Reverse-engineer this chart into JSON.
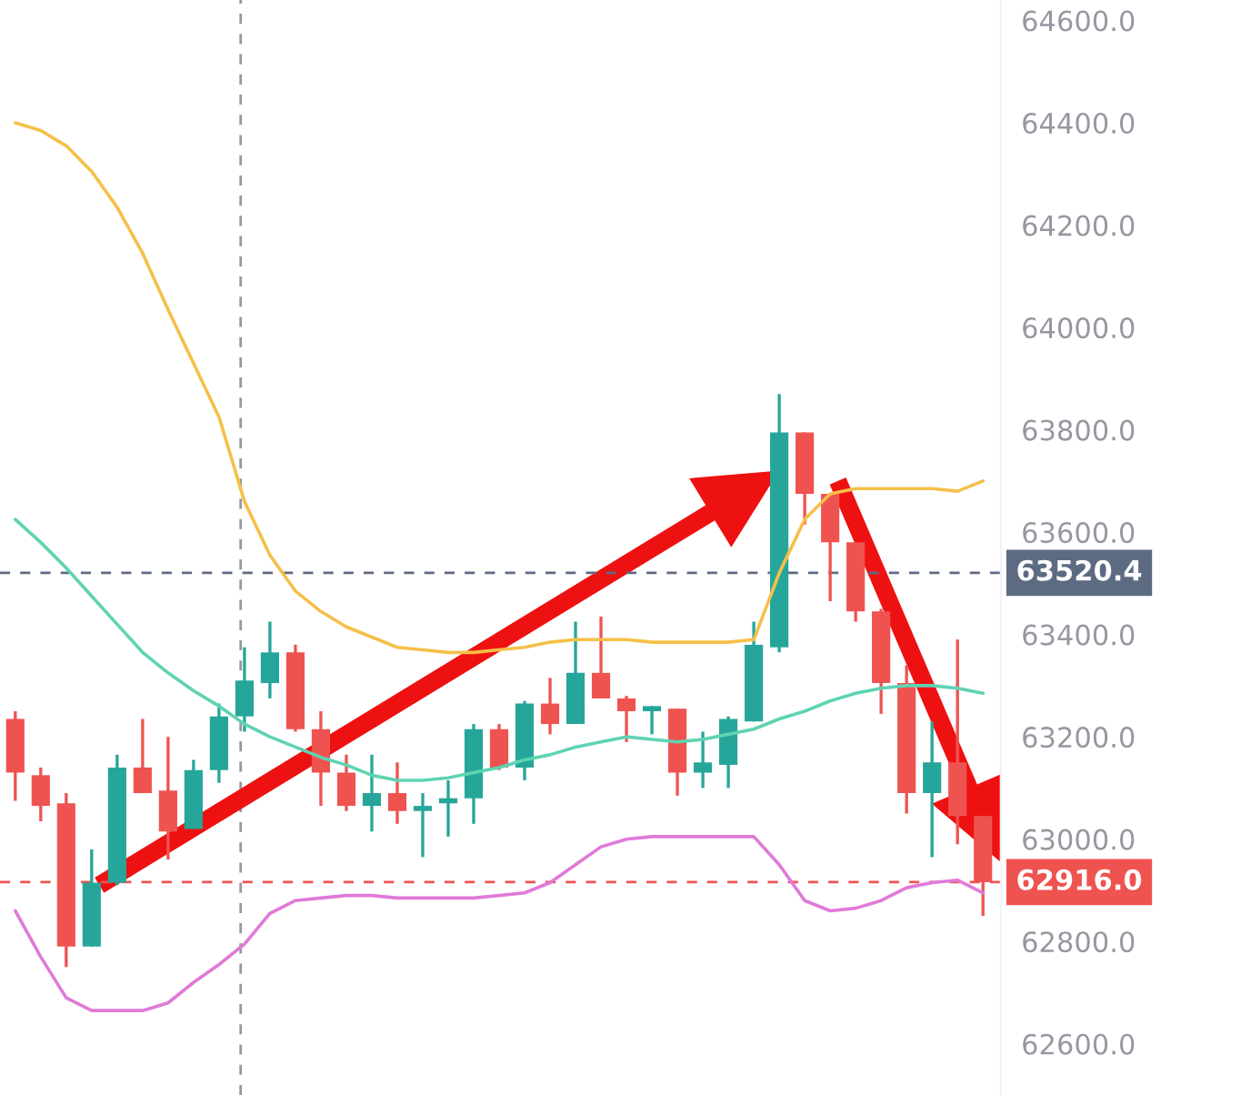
{
  "chart_data": {
    "type": "candlestick",
    "categories": [
      null,
      null,
      null,
      null,
      null,
      null,
      null,
      null,
      null,
      null,
      null,
      null,
      null,
      null,
      null,
      null,
      null,
      null,
      null,
      null,
      null,
      null,
      null,
      null,
      null,
      null,
      null,
      null,
      null,
      null,
      null,
      null,
      null,
      null,
      null,
      null,
      null,
      null,
      null
    ],
    "ohlc": [
      [
        63235,
        63250,
        63075,
        63130
      ],
      [
        63125,
        63140,
        63035,
        63065
      ],
      [
        63070,
        63090,
        62750,
        62790
      ],
      [
        62790,
        62980,
        62790,
        62915
      ],
      [
        62915,
        63165,
        62910,
        63140
      ],
      [
        63140,
        63235,
        63090,
        63090
      ],
      [
        63095,
        63200,
        62960,
        63015
      ],
      [
        63020,
        63155,
        63020,
        63135
      ],
      [
        63135,
        63265,
        63110,
        63240
      ],
      [
        63240,
        63375,
        63210,
        63310
      ],
      [
        63305,
        63425,
        63275,
        63365
      ],
      [
        63365,
        63380,
        63210,
        63215
      ],
      [
        63215,
        63250,
        63065,
        63130
      ],
      [
        63130,
        63165,
        63055,
        63065
      ],
      [
        63065,
        63165,
        63015,
        63090
      ],
      [
        63090,
        63150,
        63030,
        63055
      ],
      [
        63055,
        63090,
        62965,
        63065
      ],
      [
        63070,
        63115,
        63005,
        63080
      ],
      [
        63080,
        63225,
        63030,
        63215
      ],
      [
        63215,
        63225,
        63135,
        63140
      ],
      [
        63140,
        63270,
        63115,
        63265
      ],
      [
        63265,
        63315,
        63205,
        63225
      ],
      [
        63225,
        63425,
        63225,
        63325
      ],
      [
        63325,
        63435,
        63275,
        63275
      ],
      [
        63275,
        63280,
        63190,
        63250
      ],
      [
        63250,
        63260,
        63205,
        63260
      ],
      [
        63255,
        63255,
        63085,
        63130
      ],
      [
        63130,
        63210,
        63100,
        63150
      ],
      [
        63145,
        63240,
        63100,
        63235
      ],
      [
        63230,
        63425,
        63230,
        63380
      ],
      [
        63375,
        63870,
        63365,
        63795
      ],
      [
        63795,
        63795,
        63615,
        63675
      ],
      [
        63675,
        63675,
        63465,
        63580
      ],
      [
        63580,
        63580,
        63425,
        63445
      ],
      [
        63445,
        63450,
        63245,
        63305
      ],
      [
        63305,
        63340,
        63050,
        63090
      ],
      [
        63090,
        63230,
        62965,
        63150
      ],
      [
        63150,
        63390,
        62990,
        63045
      ],
      [
        63045,
        63045,
        62850,
        62916
      ]
    ],
    "colors": [
      "#ef5350",
      "#ef5350",
      "#ef5350",
      "#26a69a",
      "#26a69a",
      "#ef5350",
      "#ef5350",
      "#26a69a",
      "#26a69a",
      "#26a69a",
      "#26a69a",
      "#ef5350",
      "#ef5350",
      "#ef5350",
      "#26a69a",
      "#ef5350",
      "#26a69a",
      "#26a69a",
      "#26a69a",
      "#ef5350",
      "#26a69a",
      "#ef5350",
      "#26a69a",
      "#ef5350",
      "#ef5350",
      "#26a69a",
      "#ef5350",
      "#26a69a",
      "#26a69a",
      "#26a69a",
      "#26a69a",
      "#ef5350",
      "#ef5350",
      "#ef5350",
      "#ef5350",
      "#ef5350",
      "#26a69a",
      "#ef5350",
      "#ef5350"
    ],
    "series": [
      {
        "type": "line",
        "color": "#f5c04a",
        "values": [
          64400,
          64385,
          64355,
          64305,
          64235,
          64145,
          64035,
          63930,
          63825,
          63660,
          63555,
          63485,
          63445,
          63415,
          63395,
          63375,
          63370,
          63365,
          63365,
          63370,
          63375,
          63385,
          63390,
          63390,
          63390,
          63385,
          63385,
          63385,
          63385,
          63390,
          63520,
          63625,
          63675,
          63685,
          63685,
          63685,
          63685,
          63680,
          63700
        ]
      },
      {
        "type": "line",
        "color": "#5fd3b3",
        "values": [
          63625,
          63580,
          63530,
          63475,
          63420,
          63365,
          63325,
          63290,
          63260,
          63225,
          63200,
          63180,
          63160,
          63145,
          63125,
          63115,
          63115,
          63120,
          63130,
          63140,
          63155,
          63165,
          63180,
          63190,
          63200,
          63195,
          63190,
          63195,
          63205,
          63215,
          63235,
          63250,
          63270,
          63285,
          63295,
          63300,
          63300,
          63295,
          63285
        ]
      },
      {
        "type": "line",
        "color": "#e07ad8",
        "values": [
          62860,
          62770,
          62690,
          62665,
          62665,
          62665,
          62680,
          62720,
          62755,
          62795,
          62855,
          62880,
          62885,
          62890,
          62890,
          62885,
          62885,
          62885,
          62885,
          62890,
          62895,
          62915,
          62950,
          62985,
          63000,
          63005,
          63005,
          63005,
          63005,
          63005,
          62950,
          62880,
          62860,
          62865,
          62880,
          62905,
          62915,
          62920,
          62895
        ]
      }
    ],
    "ylim": [
      62500,
      64640
    ],
    "yticks": [
      {
        "value": 62600,
        "label": "62600.0"
      },
      {
        "value": 62800,
        "label": "62800.0"
      },
      {
        "value": 63000,
        "label": "63000.0"
      },
      {
        "value": 63200,
        "label": "63200.0"
      },
      {
        "value": 63400,
        "label": "63400.0"
      },
      {
        "value": 63600,
        "label": "63600.0"
      },
      {
        "value": 63800,
        "label": "63800.0"
      },
      {
        "value": 64000,
        "label": "64000.0"
      },
      {
        "value": 64200,
        "label": "64200.0"
      },
      {
        "value": 64400,
        "label": "64400.0"
      },
      {
        "value": 64600,
        "label": "64600.0"
      }
    ],
    "ref_lines": [
      {
        "axis": "y",
        "value": 63520.4,
        "label": "63520.4",
        "color": "#5d6b82",
        "line_style": "dashed"
      },
      {
        "axis": "y",
        "value": 62916,
        "label": "62916.0",
        "color": "#ef5350",
        "line_style": "dashed"
      }
    ],
    "tick_labels": "y",
    "grid": false
  }
}
